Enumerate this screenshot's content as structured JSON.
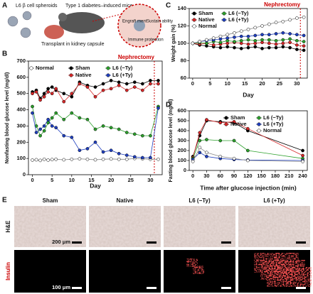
{
  "panel_a": {
    "label": "A",
    "spheroids": "L6 β cell spheroids",
    "model": "Type 1 diabetes–induced mice",
    "transplant": "Transplant in kidney capsule",
    "engraftment": "Engraft ment",
    "sustainability": "Sustain ability",
    "immune": "Immune protection"
  },
  "chart_data": [
    {
      "type": "line",
      "panel": "B",
      "xlabel": "Day",
      "ylabel": "Nonfasting blood glucose level (mg/dl)",
      "x": [
        0,
        1,
        2,
        3,
        4,
        5,
        6,
        8,
        10,
        12,
        14,
        16,
        18,
        20,
        22,
        24,
        26,
        28,
        30,
        32
      ],
      "xlim": [
        -1,
        33
      ],
      "xticks": [
        0,
        5,
        10,
        15,
        20,
        25,
        30
      ],
      "ylim": [
        0,
        700
      ],
      "yticks": [
        0,
        100,
        200,
        300,
        400,
        500,
        600,
        700
      ],
      "annotation": {
        "text": "Nephrectomy",
        "x": 31
      },
      "series": [
        {
          "name": "Normal",
          "color": "#ffffff",
          "values": [
            90,
            92,
            88,
            95,
            90,
            93,
            95,
            92,
            95,
            98,
            95,
            92,
            95,
            97,
            95,
            95,
            100,
            98,
            95,
            95
          ]
        },
        {
          "name": "Sham",
          "color": "#000000",
          "values": [
            510,
            520,
            470,
            500,
            530,
            540,
            520,
            500,
            480,
            570,
            550,
            540,
            560,
            580,
            570,
            560,
            570,
            560,
            580,
            580
          ]
        },
        {
          "name": "Native",
          "color": "#d62728",
          "values": [
            500,
            510,
            460,
            480,
            510,
            500,
            530,
            450,
            500,
            560,
            540,
            480,
            520,
            530,
            550,
            520,
            540,
            520,
            560,
            560
          ]
        },
        {
          "name": "L6 (−Ty)",
          "color": "#2ca02c",
          "values": [
            420,
            300,
            240,
            270,
            320,
            350,
            380,
            340,
            380,
            350,
            340,
            280,
            300,
            290,
            280,
            260,
            250,
            240,
            240,
            420
          ]
        },
        {
          "name": "L6 (+Ty)",
          "color": "#1f3fbf",
          "values": [
            380,
            260,
            280,
            300,
            340,
            300,
            290,
            240,
            230,
            150,
            160,
            200,
            140,
            150,
            130,
            120,
            110,
            105,
            105,
            410
          ]
        }
      ]
    },
    {
      "type": "line",
      "panel": "C",
      "xlabel": "Day",
      "ylabel": "Weight gain (%)",
      "x": [
        0,
        2,
        4,
        6,
        8,
        10,
        12,
        14,
        16,
        18,
        20,
        22,
        24,
        26,
        28,
        30,
        32
      ],
      "xlim": [
        -1,
        33
      ],
      "xticks": [
        0,
        5,
        10,
        15,
        20,
        25,
        30
      ],
      "ylim": [
        60,
        140
      ],
      "yticks": [
        60,
        80,
        100,
        120,
        140
      ],
      "annotation": {
        "text": "Nephrectomy",
        "x": 31
      },
      "series": [
        {
          "name": "Sham",
          "color": "#000000",
          "values": [
            100,
            98,
            97,
            96,
            95,
            96,
            95,
            94,
            95,
            96,
            94,
            95,
            95,
            96,
            95,
            93,
            92
          ]
        },
        {
          "name": "Native",
          "color": "#d62728",
          "values": [
            100,
            99,
            100,
            98,
            99,
            100,
            101,
            100,
            99,
            100,
            101,
            100,
            99,
            100,
            101,
            98,
            97
          ]
        },
        {
          "name": "L6 (−Ty)",
          "color": "#2ca02c",
          "values": [
            100,
            101,
            100,
            102,
            101,
            103,
            102,
            103,
            104,
            103,
            104,
            104,
            103,
            104,
            105,
            103,
            102
          ]
        },
        {
          "name": "L6 (+Ty)",
          "color": "#1f3fbf",
          "values": [
            100,
            102,
            103,
            104,
            105,
            106,
            107,
            108,
            108,
            109,
            110,
            110,
            111,
            112,
            111,
            110,
            109
          ]
        },
        {
          "name": "Normal",
          "color": "#ffffff",
          "values": [
            100,
            102,
            104,
            106,
            108,
            110,
            112,
            114,
            116,
            118,
            120,
            122,
            124,
            125,
            127,
            129,
            130
          ]
        }
      ]
    },
    {
      "type": "line",
      "panel": "D",
      "xlabel": "Time after glucose injection (min)",
      "ylabel": "Fasting blood glucose level (mg/dl)",
      "x": [
        0,
        15,
        30,
        60,
        90,
        120,
        240
      ],
      "xlim": [
        -8,
        250
      ],
      "xticks": [
        0,
        30,
        60,
        90,
        120,
        150,
        180,
        210,
        240
      ],
      "ylim": [
        0,
        600
      ],
      "yticks": [
        0,
        100,
        200,
        300,
        400,
        500,
        600
      ],
      "series": [
        {
          "name": "Sham",
          "color": "#000000",
          "values": [
            140,
            350,
            500,
            490,
            480,
            400,
            200
          ]
        },
        {
          "name": "Native",
          "color": "#d62728",
          "values": [
            130,
            380,
            510,
            480,
            490,
            420,
            150
          ]
        },
        {
          "name": "L6 (−Ty)",
          "color": "#2ca02c",
          "values": [
            120,
            300,
            310,
            300,
            300,
            200,
            120
          ]
        },
        {
          "name": "L6 (+Ty)",
          "color": "#1f3fbf",
          "values": [
            110,
            180,
            140,
            120,
            110,
            105,
            100
          ]
        },
        {
          "name": "Normal",
          "color": "#ffffff",
          "values": [
            90,
            230,
            180,
            140,
            120,
            100,
            90
          ]
        }
      ]
    }
  ],
  "panel_e": {
    "label": "E",
    "columns": [
      "Sham",
      "Native",
      "L6 (−Ty)",
      "L6 (+Ty)"
    ],
    "rows": [
      "H&E",
      "Insulin"
    ],
    "scale_top": "200 μm",
    "scale_bottom": "100 μm"
  }
}
